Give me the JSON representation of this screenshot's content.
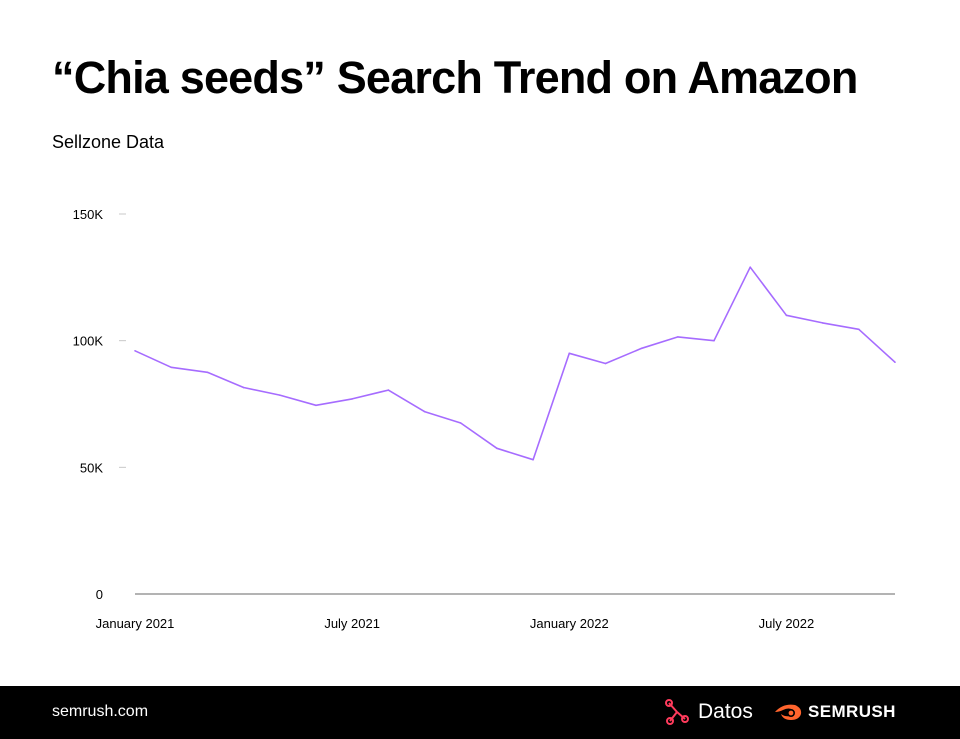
{
  "header": {
    "title": "“Chia seeds” Search Trend on Amazon",
    "subtitle": "Sellzone Data"
  },
  "chart_data": {
    "type": "line",
    "title": "“Chia seeds” Search Trend on Amazon",
    "subtitle": "Sellzone Data",
    "xlabel": "",
    "ylabel": "",
    "x": [
      "2021-01",
      "2021-02",
      "2021-03",
      "2021-04",
      "2021-05",
      "2021-06",
      "2021-07",
      "2021-08",
      "2021-09",
      "2021-10",
      "2021-11",
      "2021-12",
      "2022-01",
      "2022-02",
      "2022-03",
      "2022-04",
      "2022-05",
      "2022-06",
      "2022-07",
      "2022-08",
      "2022-09",
      "2022-10"
    ],
    "series": [
      {
        "values": [
          96000,
          89500,
          87500,
          81500,
          78500,
          74500,
          77000,
          80500,
          72000,
          67500,
          57500,
          53000,
          95000,
          91000,
          97000,
          101500,
          100000,
          129000,
          110000,
          107000,
          104500,
          91500
        ],
        "color": "#a66cff"
      }
    ],
    "ylim": [
      0,
      150000
    ],
    "y_ticks": [
      0,
      50000,
      100000,
      150000
    ],
    "y_tick_labels": [
      "0",
      "50K",
      "100K",
      "150K"
    ],
    "x_ticks": [
      "2021-01",
      "2021-07",
      "2022-01",
      "2022-07"
    ],
    "x_tick_labels": [
      "January 2021",
      "July 2021",
      "January 2022",
      "July 2022"
    ],
    "grid": false,
    "legend": "none"
  },
  "footer": {
    "site": "semrush.com",
    "datos_label": "Datos",
    "semrush_label": "SEMRUSH",
    "semrush_color": "#ff642d",
    "datos_icon_color": "#ff3b5c"
  }
}
